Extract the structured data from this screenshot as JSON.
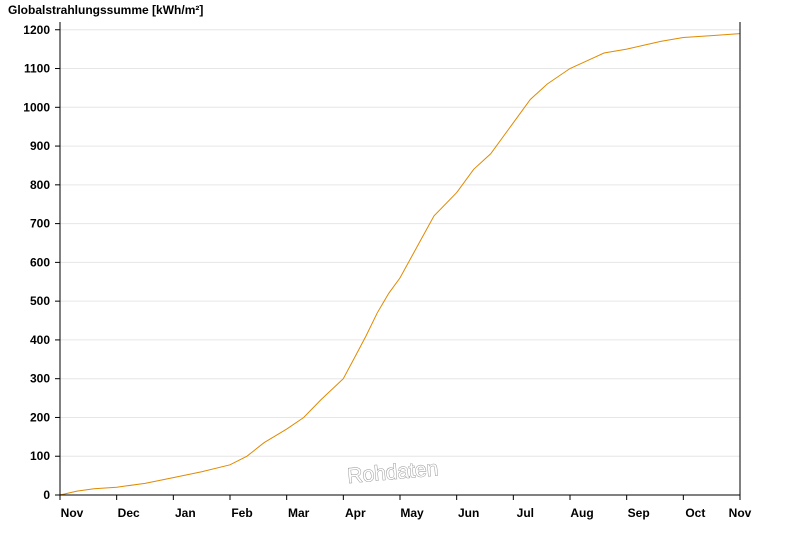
{
  "chart_data": {
    "type": "line",
    "ylabel": "Globalstrahlungssumme [kWh/m²]",
    "xlabel": "",
    "ylim": [
      0,
      1220
    ],
    "y_ticks": [
      0,
      100,
      200,
      300,
      400,
      500,
      600,
      700,
      800,
      900,
      1000,
      1100,
      1200
    ],
    "x_tick_labels": [
      "Nov",
      "Dec",
      "Jan",
      "Feb",
      "Mar",
      "Apr",
      "May",
      "Jun",
      "Jul",
      "Aug",
      "Sep",
      "Oct",
      "Nov"
    ],
    "grid": "horizontal",
    "series": [
      {
        "color": "#e08a00",
        "x": [
          0,
          0.3,
          0.6,
          1,
          1.5,
          2,
          2.5,
          3,
          3.3,
          3.6,
          4,
          4.3,
          4.6,
          5,
          5.2,
          5.4,
          5.6,
          5.8,
          6,
          6.3,
          6.6,
          7,
          7.3,
          7.6,
          8,
          8.3,
          8.6,
          9,
          9.3,
          9.6,
          10,
          10.3,
          10.6,
          11,
          11.5,
          12
        ],
        "values": [
          0,
          10,
          16,
          20,
          30,
          45,
          60,
          78,
          100,
          135,
          170,
          200,
          245,
          300,
          355,
          410,
          470,
          520,
          560,
          640,
          720,
          780,
          840,
          880,
          960,
          1020,
          1060,
          1100,
          1120,
          1140,
          1150,
          1160,
          1170,
          1180,
          1185,
          1190
        ]
      }
    ]
  },
  "watermark": "Rohdaten"
}
